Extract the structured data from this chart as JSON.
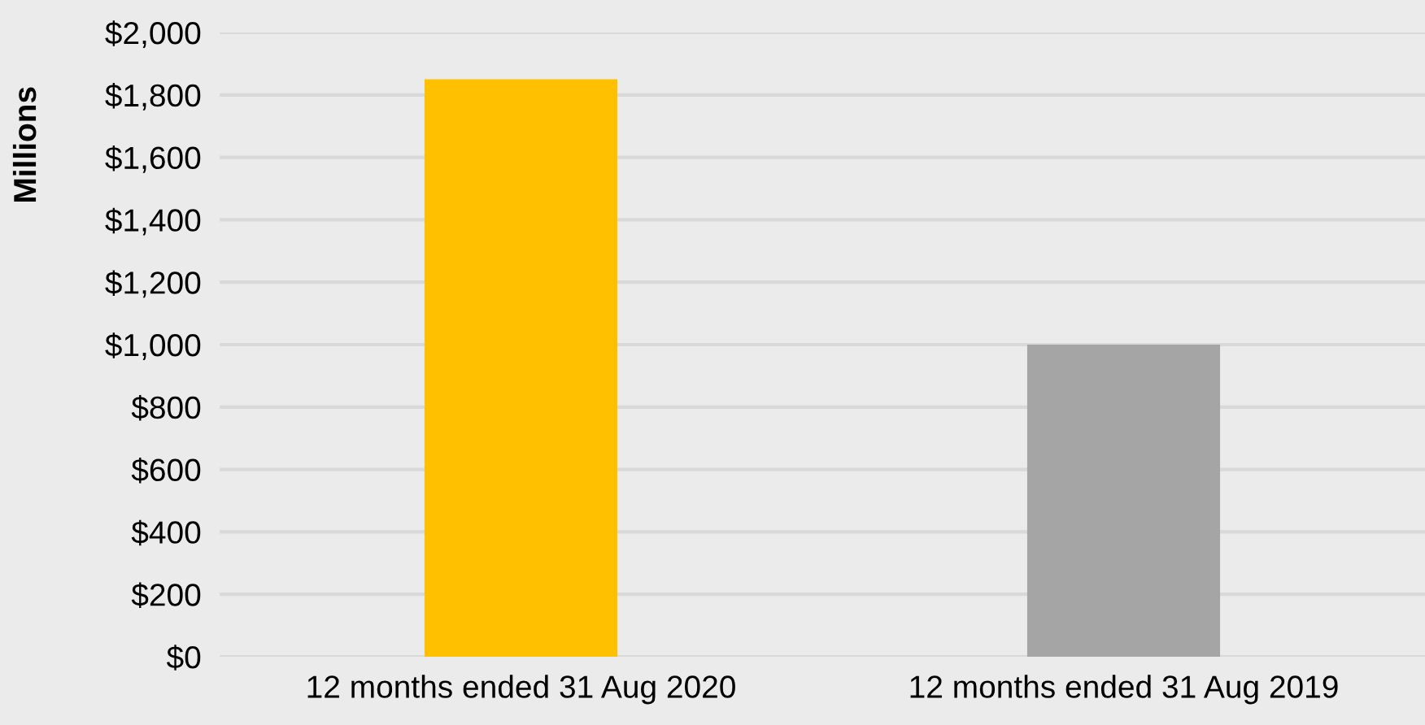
{
  "chart_data": {
    "type": "bar",
    "ylabel": "Millions",
    "categories": [
      "12 months ended 31 Aug 2020",
      "12 months ended 31 Aug 2019"
    ],
    "values": [
      1850,
      1000
    ],
    "colors": [
      "#ffc000",
      "#a5a5a5"
    ],
    "ylim": [
      0,
      2000
    ],
    "yticks": [
      {
        "value": 0,
        "label": "$0"
      },
      {
        "value": 200,
        "label": "$200"
      },
      {
        "value": 400,
        "label": "$400"
      },
      {
        "value": 600,
        "label": "$600"
      },
      {
        "value": 800,
        "label": "$800"
      },
      {
        "value": 1000,
        "label": "$1,000"
      },
      {
        "value": 1200,
        "label": "$1,200"
      },
      {
        "value": 1400,
        "label": "$1,400"
      },
      {
        "value": 1600,
        "label": "$1,600"
      },
      {
        "value": 1800,
        "label": "$1,800"
      },
      {
        "value": 2000,
        "label": "$2,000"
      }
    ],
    "grid": "y"
  }
}
